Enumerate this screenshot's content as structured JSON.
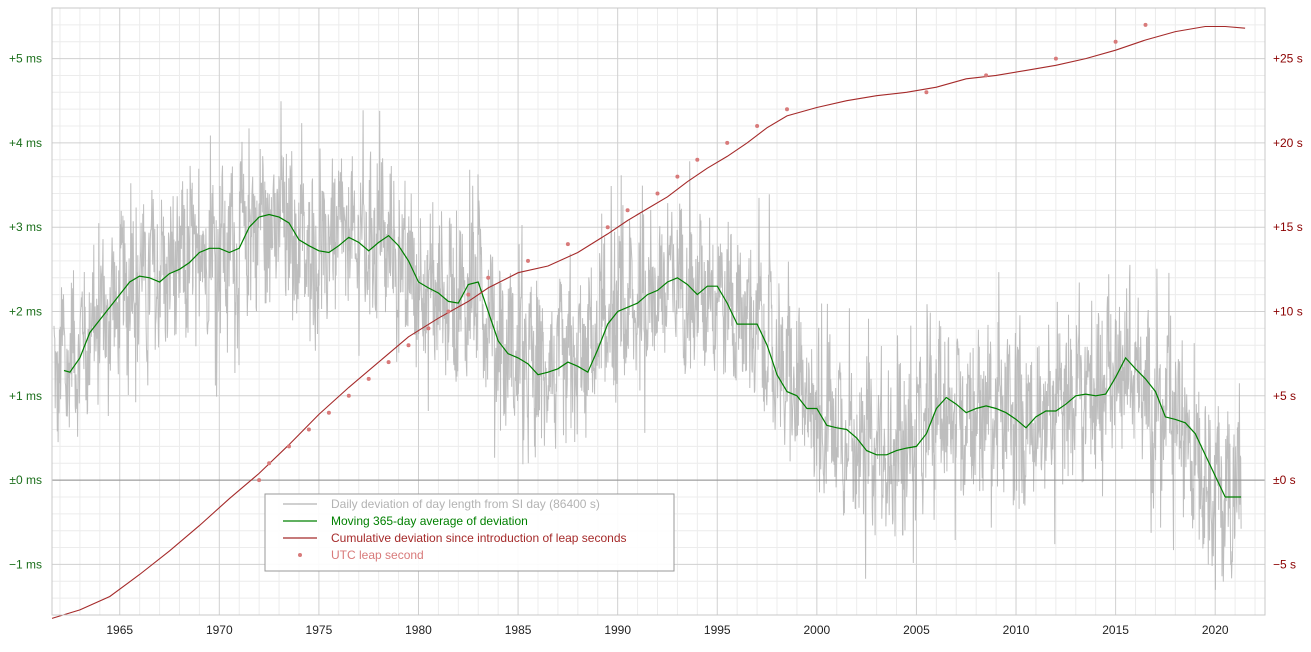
{
  "chart_data": {
    "type": "line",
    "title": "",
    "xlabel": "",
    "ylabel_left": "",
    "ylabel_right": "",
    "xlim": [
      1961.6,
      2022.5
    ],
    "ylim_left": [
      -1.6,
      5.6
    ],
    "ylim_right": [
      -8,
      28
    ],
    "x_ticks": [
      1965,
      1970,
      1975,
      1980,
      1985,
      1990,
      1995,
      2000,
      2005,
      2010,
      2015,
      2020
    ],
    "x_tick_labels": [
      "1965",
      "1970",
      "1975",
      "1980",
      "1985",
      "1990",
      "1995",
      "2000",
      "2005",
      "2010",
      "2015",
      "2020"
    ],
    "left_ticks": [
      5,
      4,
      3,
      2,
      1,
      0,
      -1
    ],
    "left_tick_labels": [
      "+5 ms",
      "+4 ms",
      "+3 ms",
      "+2 ms",
      "+1 ms",
      "±0 ms",
      "−1 ms"
    ],
    "right_ticks": [
      25,
      20,
      15,
      10,
      5,
      0,
      -5
    ],
    "right_tick_labels": [
      "+25 s",
      "+20 s",
      "+15 s",
      "+10 s",
      "+5 s",
      "±0 s",
      "−5 s"
    ],
    "grid": true,
    "legend_position": "lower-center",
    "colors": {
      "daily": "#b3b3b3",
      "average": "#008000",
      "cumulative": "#a52a2a",
      "leap": "#d87a7a",
      "left_axis_text": "#1a6e1a",
      "right_axis_text": "#8b0000",
      "grid_major": "#d0d0d0",
      "grid_minor": "#ececec"
    },
    "series": [
      {
        "name": "Daily deviation of day length from SI day (86400 s)",
        "axis": "left",
        "style": "noisy-band",
        "amplitude_ms": 0.9,
        "center_points": [
          [
            1961.7,
            1.4
          ],
          [
            1962,
            1.3
          ],
          [
            1963,
            1.6
          ],
          [
            1964,
            1.9
          ],
          [
            1965,
            2.2
          ],
          [
            1966,
            2.4
          ],
          [
            1967,
            2.4
          ],
          [
            1968,
            2.5
          ],
          [
            1969,
            2.7
          ],
          [
            1970,
            2.75
          ],
          [
            1971,
            2.8
          ],
          [
            1972,
            3.1
          ],
          [
            1973,
            3.1
          ],
          [
            1974,
            2.8
          ],
          [
            1975,
            2.7
          ],
          [
            1976,
            2.9
          ],
          [
            1977,
            2.85
          ],
          [
            1978,
            2.9
          ],
          [
            1979,
            2.6
          ],
          [
            1980,
            2.3
          ],
          [
            1981,
            2.2
          ],
          [
            1982,
            2.1
          ],
          [
            1983,
            2.35
          ],
          [
            1984,
            1.7
          ],
          [
            1985,
            1.45
          ],
          [
            1986,
            1.25
          ],
          [
            1987,
            1.35
          ],
          [
            1988,
            1.35
          ],
          [
            1989,
            1.7
          ],
          [
            1990,
            1.95
          ],
          [
            1991,
            2.1
          ],
          [
            1992,
            2.25
          ],
          [
            1993,
            2.4
          ],
          [
            1994,
            2.2
          ],
          [
            1995,
            2.3
          ],
          [
            1996,
            2.0
          ],
          [
            1997,
            1.8
          ],
          [
            1998,
            1.5
          ],
          [
            1999,
            1.0
          ],
          [
            2000,
            0.85
          ],
          [
            2001,
            0.65
          ],
          [
            2002,
            0.5
          ],
          [
            2003,
            0.3
          ],
          [
            2004,
            0.3
          ],
          [
            2005,
            0.45
          ],
          [
            2006,
            0.85
          ],
          [
            2007,
            0.85
          ],
          [
            2008,
            0.8
          ],
          [
            2009,
            0.85
          ],
          [
            2010,
            0.7
          ],
          [
            2011,
            0.75
          ],
          [
            2012,
            0.85
          ],
          [
            2013,
            1.05
          ],
          [
            2014,
            1.0
          ],
          [
            2015,
            1.4
          ],
          [
            2016,
            1.2
          ],
          [
            2017,
            0.85
          ],
          [
            2018,
            0.7
          ],
          [
            2019,
            0.45
          ],
          [
            2020,
            -0.15
          ],
          [
            2021.3,
            -0.2
          ]
        ]
      },
      {
        "name": "Moving 365-day average of deviation",
        "axis": "left",
        "points": [
          [
            1962.2,
            1.3
          ],
          [
            1962.5,
            1.28
          ],
          [
            1963,
            1.45
          ],
          [
            1963.5,
            1.75
          ],
          [
            1964,
            1.9
          ],
          [
            1964.5,
            2.05
          ],
          [
            1965,
            2.2
          ],
          [
            1965.5,
            2.35
          ],
          [
            1966,
            2.42
          ],
          [
            1966.5,
            2.4
          ],
          [
            1967,
            2.35
          ],
          [
            1967.5,
            2.45
          ],
          [
            1968,
            2.5
          ],
          [
            1968.5,
            2.58
          ],
          [
            1969,
            2.7
          ],
          [
            1969.5,
            2.75
          ],
          [
            1970,
            2.75
          ],
          [
            1970.5,
            2.7
          ],
          [
            1971,
            2.75
          ],
          [
            1971.5,
            3.0
          ],
          [
            1972,
            3.12
          ],
          [
            1972.5,
            3.15
          ],
          [
            1973,
            3.12
          ],
          [
            1973.5,
            3.05
          ],
          [
            1974,
            2.85
          ],
          [
            1974.5,
            2.78
          ],
          [
            1975,
            2.72
          ],
          [
            1975.5,
            2.7
          ],
          [
            1976,
            2.78
          ],
          [
            1976.5,
            2.88
          ],
          [
            1977,
            2.82
          ],
          [
            1977.5,
            2.72
          ],
          [
            1978,
            2.82
          ],
          [
            1978.5,
            2.9
          ],
          [
            1979,
            2.78
          ],
          [
            1979.5,
            2.6
          ],
          [
            1980,
            2.35
          ],
          [
            1980.5,
            2.28
          ],
          [
            1981,
            2.22
          ],
          [
            1981.5,
            2.12
          ],
          [
            1982,
            2.1
          ],
          [
            1982.5,
            2.32
          ],
          [
            1983,
            2.35
          ],
          [
            1983.5,
            2.0
          ],
          [
            1984,
            1.65
          ],
          [
            1984.5,
            1.5
          ],
          [
            1985,
            1.45
          ],
          [
            1985.5,
            1.38
          ],
          [
            1986,
            1.25
          ],
          [
            1986.5,
            1.28
          ],
          [
            1987,
            1.32
          ],
          [
            1987.5,
            1.4
          ],
          [
            1988,
            1.35
          ],
          [
            1988.5,
            1.28
          ],
          [
            1989,
            1.55
          ],
          [
            1989.5,
            1.85
          ],
          [
            1990,
            2.0
          ],
          [
            1990.5,
            2.05
          ],
          [
            1991,
            2.1
          ],
          [
            1991.5,
            2.2
          ],
          [
            1992,
            2.25
          ],
          [
            1992.5,
            2.35
          ],
          [
            1993,
            2.4
          ],
          [
            1993.5,
            2.32
          ],
          [
            1994,
            2.2
          ],
          [
            1994.5,
            2.3
          ],
          [
            1995,
            2.3
          ],
          [
            1995.5,
            2.1
          ],
          [
            1996,
            1.85
          ],
          [
            1996.5,
            1.85
          ],
          [
            1997,
            1.85
          ],
          [
            1997.5,
            1.6
          ],
          [
            1998,
            1.25
          ],
          [
            1998.5,
            1.05
          ],
          [
            1999,
            1.0
          ],
          [
            1999.5,
            0.85
          ],
          [
            2000,
            0.85
          ],
          [
            2000.5,
            0.65
          ],
          [
            2001,
            0.62
          ],
          [
            2001.5,
            0.6
          ],
          [
            2002,
            0.5
          ],
          [
            2002.5,
            0.35
          ],
          [
            2003,
            0.3
          ],
          [
            2003.5,
            0.3
          ],
          [
            2004,
            0.35
          ],
          [
            2004.5,
            0.38
          ],
          [
            2005,
            0.4
          ],
          [
            2005.5,
            0.55
          ],
          [
            2006,
            0.85
          ],
          [
            2006.5,
            0.98
          ],
          [
            2007,
            0.9
          ],
          [
            2007.5,
            0.8
          ],
          [
            2008,
            0.85
          ],
          [
            2008.5,
            0.88
          ],
          [
            2009,
            0.85
          ],
          [
            2009.5,
            0.8
          ],
          [
            2010,
            0.72
          ],
          [
            2010.5,
            0.62
          ],
          [
            2011,
            0.75
          ],
          [
            2011.5,
            0.82
          ],
          [
            2012,
            0.82
          ],
          [
            2012.5,
            0.9
          ],
          [
            2013,
            1.0
          ],
          [
            2013.5,
            1.02
          ],
          [
            2014,
            1.0
          ],
          [
            2014.5,
            1.02
          ],
          [
            2015,
            1.22
          ],
          [
            2015.5,
            1.45
          ],
          [
            2016,
            1.32
          ],
          [
            2016.5,
            1.2
          ],
          [
            2017,
            1.05
          ],
          [
            2017.5,
            0.75
          ],
          [
            2018,
            0.72
          ],
          [
            2018.5,
            0.68
          ],
          [
            2019,
            0.55
          ],
          [
            2019.5,
            0.3
          ],
          [
            2020,
            0.05
          ],
          [
            2020.5,
            -0.2
          ],
          [
            2021.3,
            -0.2
          ]
        ]
      },
      {
        "name": "Cumulative deviation since introduction of leap seconds",
        "axis": "right",
        "points": [
          [
            1961.6,
            -8.2
          ],
          [
            1963,
            -7.7
          ],
          [
            1964.5,
            -6.9
          ],
          [
            1966,
            -5.6
          ],
          [
            1967.5,
            -4.2
          ],
          [
            1969,
            -2.7
          ],
          [
            1970.5,
            -1.1
          ],
          [
            1972,
            0.4
          ],
          [
            1973.5,
            2.1
          ],
          [
            1975,
            3.9
          ],
          [
            1976.5,
            5.5
          ],
          [
            1978,
            7.0
          ],
          [
            1979.5,
            8.5
          ],
          [
            1981,
            9.6
          ],
          [
            1982.5,
            10.6
          ],
          [
            1983.5,
            11.4
          ],
          [
            1985,
            12.3
          ],
          [
            1986.5,
            12.7
          ],
          [
            1988,
            13.5
          ],
          [
            1989.5,
            14.6
          ],
          [
            1990.5,
            15.4
          ],
          [
            1991.5,
            16.1
          ],
          [
            1992.5,
            16.8
          ],
          [
            1993.5,
            17.7
          ],
          [
            1994.5,
            18.5
          ],
          [
            1995.5,
            19.2
          ],
          [
            1996.5,
            20.0
          ],
          [
            1997.5,
            20.9
          ],
          [
            1998.5,
            21.6
          ],
          [
            2000,
            22.1
          ],
          [
            2001.5,
            22.5
          ],
          [
            2003,
            22.8
          ],
          [
            2004.5,
            23.0
          ],
          [
            2006,
            23.3
          ],
          [
            2007.5,
            23.8
          ],
          [
            2009,
            24.0
          ],
          [
            2010.5,
            24.3
          ],
          [
            2012,
            24.6
          ],
          [
            2013.5,
            25.0
          ],
          [
            2015,
            25.5
          ],
          [
            2016.5,
            26.1
          ],
          [
            2018,
            26.6
          ],
          [
            2019.5,
            26.9
          ],
          [
            2020.5,
            26.9
          ],
          [
            2021.5,
            26.8
          ]
        ]
      },
      {
        "name": "UTC leap second",
        "axis": "right",
        "style": "dots",
        "points": [
          [
            1972.0,
            0
          ],
          [
            1972.5,
            1
          ],
          [
            1973.5,
            2
          ],
          [
            1974.5,
            3
          ],
          [
            1975.5,
            4
          ],
          [
            1976.5,
            5
          ],
          [
            1977.5,
            6
          ],
          [
            1978.5,
            7
          ],
          [
            1979.5,
            8
          ],
          [
            1980.5,
            9
          ],
          [
            1981.5,
            10
          ],
          [
            1982.5,
            11
          ],
          [
            1983.5,
            12
          ],
          [
            1985.5,
            13
          ],
          [
            1987.5,
            14
          ],
          [
            1989.5,
            15
          ],
          [
            1990.5,
            16
          ],
          [
            1992.0,
            17
          ],
          [
            1993.0,
            18
          ],
          [
            1994.0,
            19
          ],
          [
            1995.5,
            20
          ],
          [
            1997.0,
            21
          ],
          [
            1998.5,
            22
          ],
          [
            2005.5,
            23
          ],
          [
            2008.5,
            24
          ],
          [
            2012.0,
            25
          ],
          [
            2015.0,
            26
          ],
          [
            2016.5,
            27
          ]
        ]
      }
    ],
    "legend": [
      {
        "label": "Daily deviation of day length from SI day (86400 s)",
        "color": "#b3b3b3",
        "marker": "line"
      },
      {
        "label": "Moving 365-day average of deviation",
        "color": "#008000",
        "marker": "line"
      },
      {
        "label": "Cumulative deviation since introduction of leap seconds",
        "color": "#a52a2a",
        "marker": "line"
      },
      {
        "label": "UTC leap second",
        "color": "#d87a7a",
        "marker": "dot"
      }
    ]
  }
}
